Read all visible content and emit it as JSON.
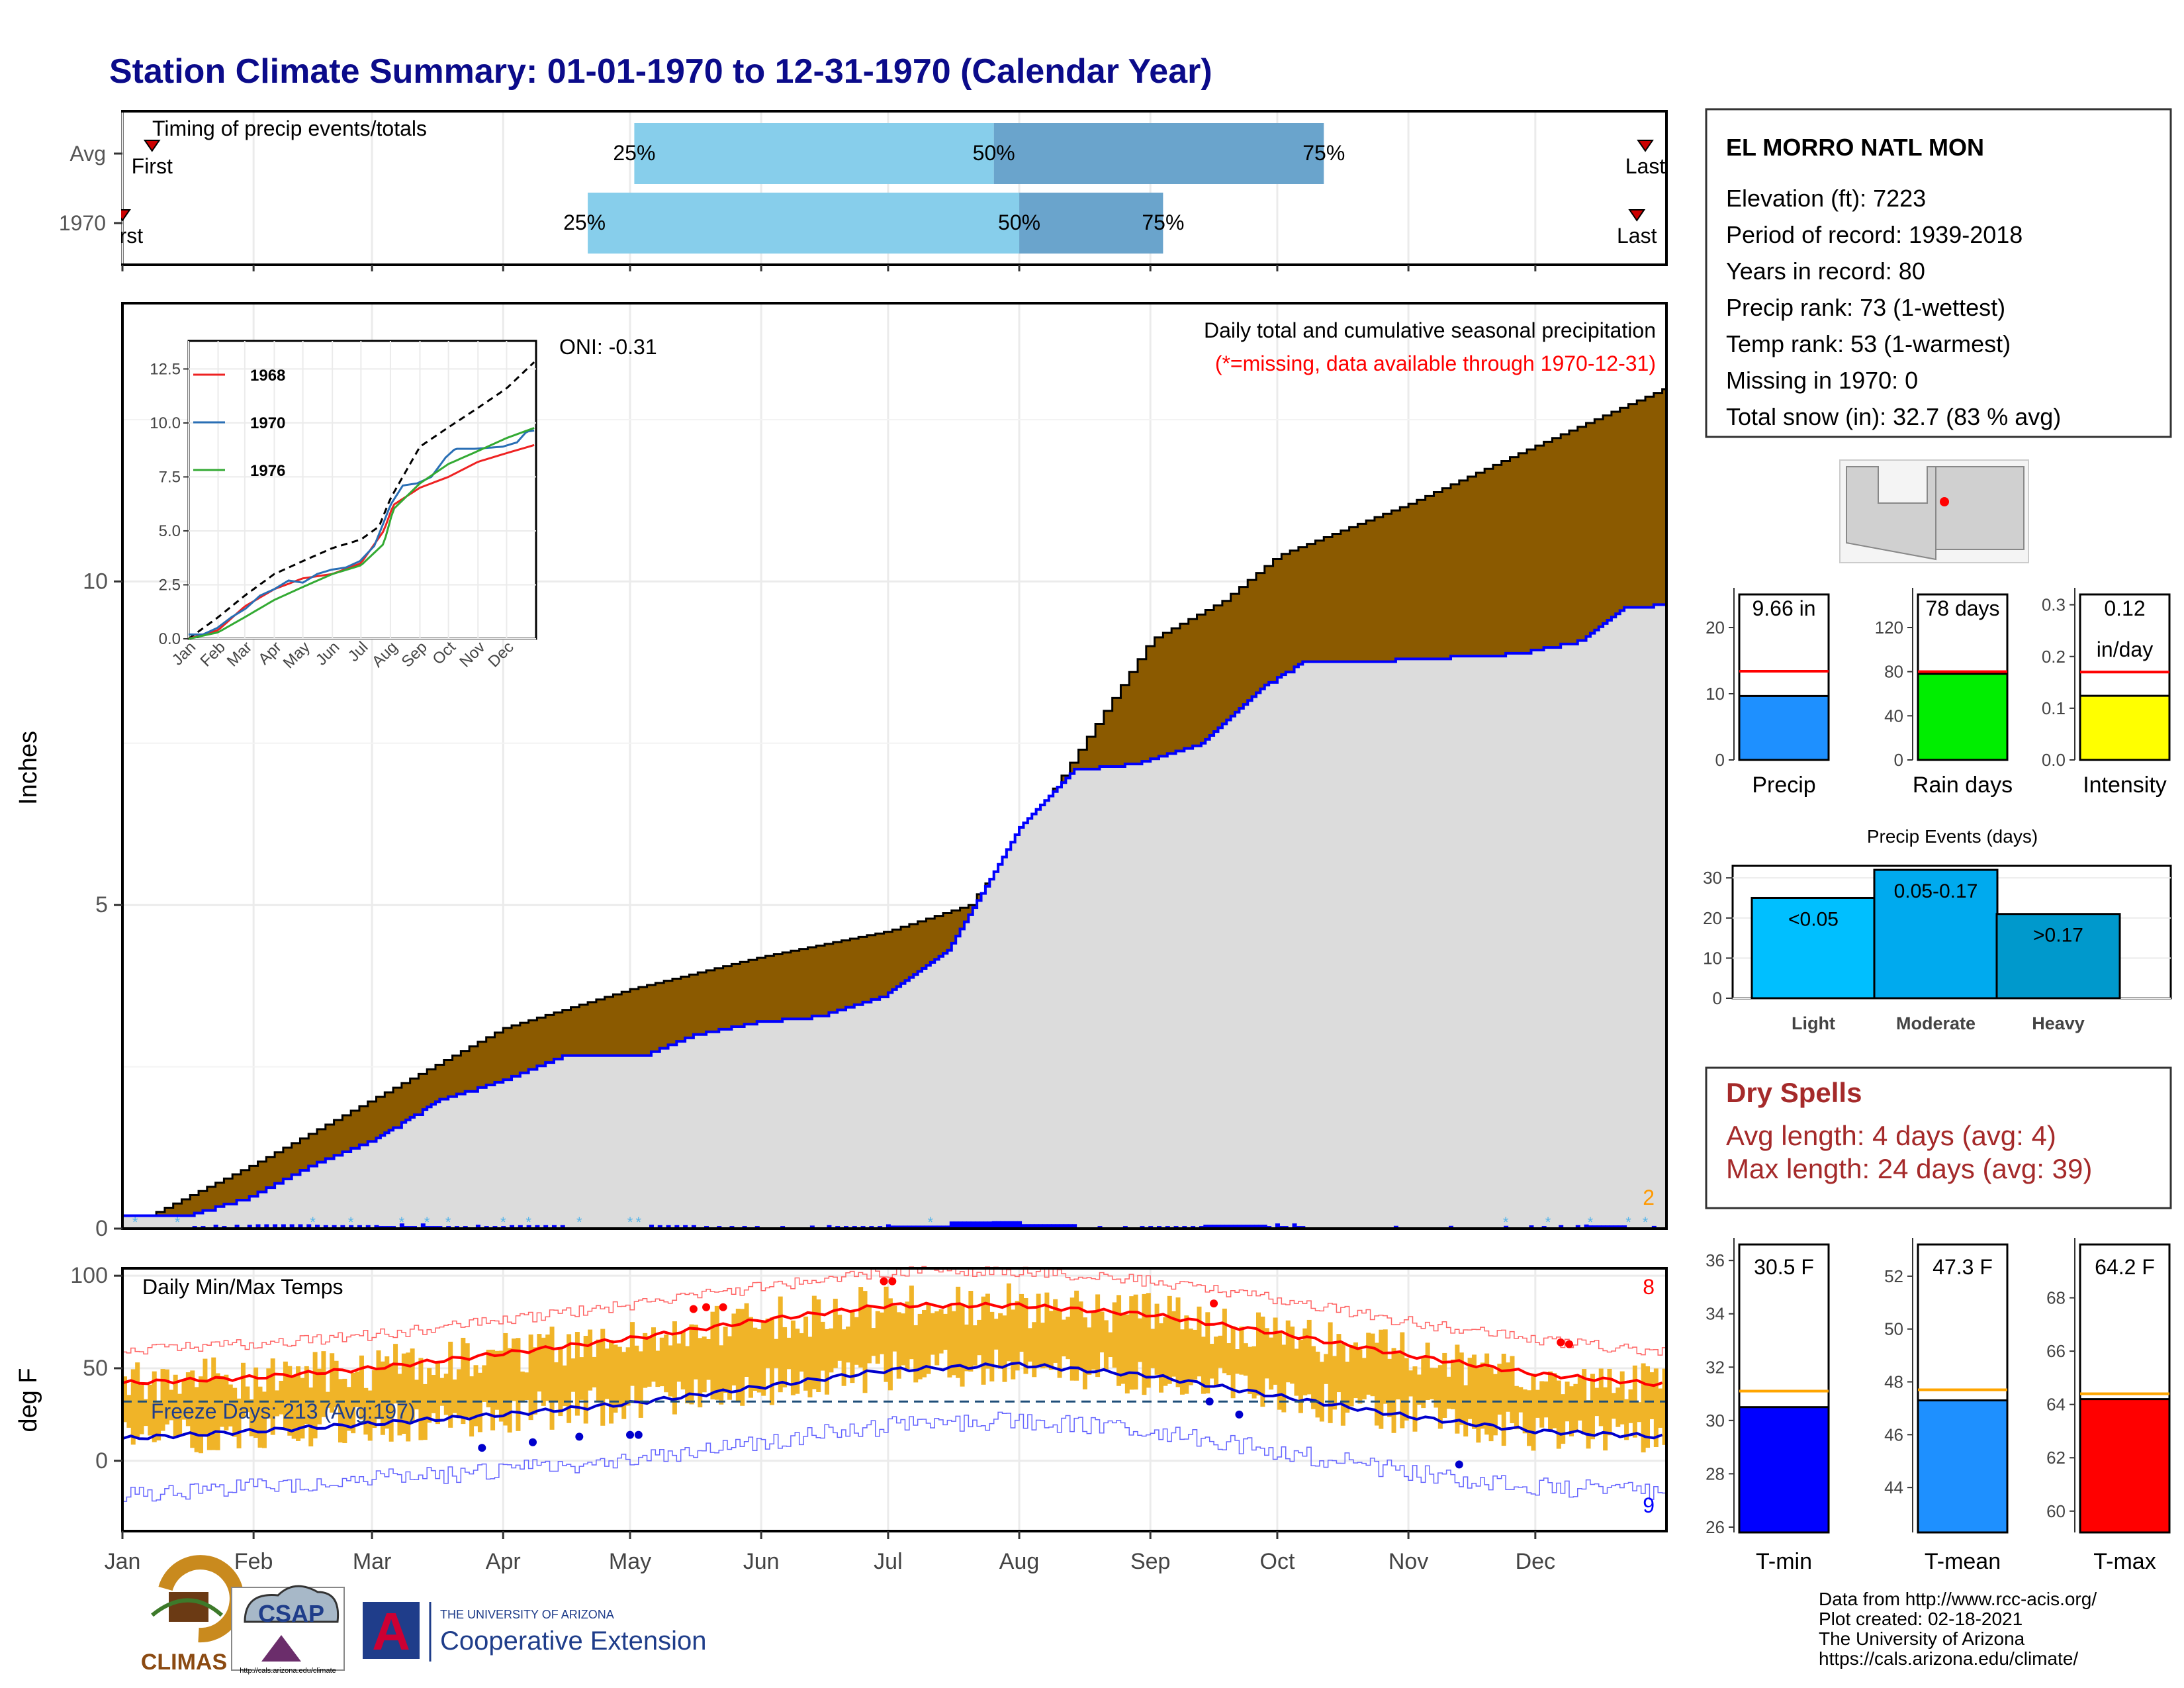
{
  "page": {
    "title": "Station Climate Summary: 01-01-1970 to 12-31-1970 (Calendar Year)"
  },
  "colors": {
    "title": "#0b0b8a",
    "normal_fill": "#8b5a00",
    "year_fill": "#dcdcdc",
    "year_line": "#0000ff",
    "bar_light_blue": "#87ceeb",
    "bar_mid_blue": "#6aa4cc",
    "temp_bar": "#f0b428",
    "max_line": "#ff0000",
    "min_line": "#0000cc",
    "dry_spell": "#a52a2a",
    "missing": "#ff0000"
  },
  "timing_panel": {
    "label": "Timing of precip events/totals",
    "rows": [
      {
        "name": "Avg",
        "first_label": "First",
        "last_label": "Last",
        "p25": "25%",
        "p50": "50%",
        "p75": "75%",
        "first_day": 7,
        "p25_day": 121,
        "p50_day": 206,
        "p75_day": 284,
        "last_day": 360
      },
      {
        "name": "1970",
        "first_label": "First",
        "last_label": "Last",
        "p25": "25%",
        "p50": "50%",
        "p75": "75%",
        "first_day": 0,
        "p25_day": 110,
        "p50_day": 212,
        "p75_day": 246,
        "last_day": 358
      }
    ]
  },
  "precip_panel": {
    "subtitle": "Daily total and cumulative seasonal precipitation",
    "missing_note": "(*=missing, data available through 1970-12-31)",
    "oni": "ONI: -0.31",
    "ylabel": "Inches",
    "y_ticks": [
      "0",
      "5",
      "10"
    ],
    "corner_count": "2"
  },
  "temp_panel": {
    "label": "Daily Min/Max Temps",
    "ylabel": "deg F",
    "y_ticks": [
      "0",
      "50",
      "100"
    ],
    "freeze_days": "Freeze Days: 213 (Avg:197)",
    "record_high_count": "8",
    "record_low_count": "9"
  },
  "months": [
    "Jan",
    "Feb",
    "Mar",
    "Apr",
    "May",
    "Jun",
    "Jul",
    "Aug",
    "Sep",
    "Oct",
    "Nov",
    "Dec"
  ],
  "station": {
    "name": "EL MORRO NATL MON",
    "lines": [
      "Elevation (ft): 7223",
      "Period of record: 1939-2018",
      "Years in record: 80",
      "Precip rank: 73 (1-wettest)",
      "Temp rank: 53 (1-warmest)",
      "Missing in 1970: 0",
      "Total snow (in): 32.7 (83 % avg)"
    ]
  },
  "inset": {
    "legend": [
      "1968",
      "1970",
      "1976"
    ],
    "y_ticks": [
      "0.0",
      "2.5",
      "5.0",
      "7.5",
      "10.0",
      "12.5"
    ],
    "x_ticks": [
      "Jan",
      "Feb",
      "Mar",
      "Apr",
      "May",
      "Jun",
      "Jul",
      "Aug",
      "Sep",
      "Oct",
      "Nov",
      "Dec"
    ]
  },
  "mini_bars": [
    {
      "label": "Precip",
      "value_text": "9.66 in",
      "value": 9.66,
      "avg": 13.4,
      "ymax": 25,
      "ticks": [
        "0",
        "10",
        "20"
      ],
      "color": "#1e90ff"
    },
    {
      "label": "Rain days",
      "value_text": "78 days",
      "value": 78,
      "avg": 80,
      "ymax": 150,
      "ticks": [
        "0",
        "40",
        "80",
        "120"
      ],
      "color": "#00ee00"
    },
    {
      "label": "Intensity",
      "value_text": "0.12",
      "value_text2": "in/day",
      "value": 0.124,
      "avg": 0.17,
      "ymax": 0.32,
      "ticks": [
        "0.0",
        "0.1",
        "0.2",
        "0.3"
      ],
      "color": "#ffff00"
    }
  ],
  "precip_events": {
    "title": "Precip Events (days)",
    "y_ticks": [
      "0",
      "10",
      "20",
      "30"
    ],
    "categories": [
      "Light",
      "Moderate",
      "Heavy"
    ],
    "bar_labels": [
      "<0.05",
      "0.05-0.17",
      ">0.17"
    ],
    "values": [
      25,
      32,
      21
    ]
  },
  "dry_spells": {
    "title": "Dry Spells",
    "avg_line": "Avg length: 4 days (avg: 4)",
    "max_line": "Max length: 24 days (avg: 39)"
  },
  "temp_bars": [
    {
      "label": "T-min",
      "value_text": "30.5 F",
      "value": 30.5,
      "avg": 31.1,
      "ymin": 25.8,
      "ymax": 36.6,
      "ticks": [
        "26",
        "28",
        "30",
        "32",
        "34",
        "36"
      ],
      "color": "#0000ff"
    },
    {
      "label": "T-mean",
      "value_text": "47.3 F",
      "value": 47.3,
      "avg": 47.7,
      "ymin": 42.3,
      "ymax": 53.2,
      "ticks": [
        "44",
        "46",
        "48",
        "50",
        "52"
      ],
      "color": "#1e90ff"
    },
    {
      "label": "T-max",
      "value_text": "64.2 F",
      "value": 64.2,
      "avg": 64.4,
      "ymin": 59.2,
      "ymax": 70.0,
      "ticks": [
        "60",
        "62",
        "64",
        "66",
        "68"
      ],
      "color": "#ff0000"
    }
  ],
  "footer": {
    "lines": [
      "Data from http://www.rcc-acis.org/",
      "Plot created: 02-18-2021",
      "The University of Arizona",
      "https://cals.arizona.edu/climate/"
    ],
    "logo_climas": "CLIMAS",
    "logo_csap": "CSAP",
    "logo_csap_url": "http://cals.arizona.edu/climate",
    "ua_line1": "THE UNIVERSITY OF ARIZONA",
    "ua_line2": "Cooperative Extension",
    "ua_letter": "A"
  },
  "chart_data": [
    {
      "type": "area",
      "title": "Daily total and cumulative seasonal precipitation",
      "ylabel": "Inches",
      "ylim": [
        0,
        14.3
      ],
      "xlim_days": [
        0,
        365
      ],
      "series": [
        {
          "name": "normal cumulative",
          "x": [
            0,
            31,
            59,
            90,
            110,
            120,
            151,
            181,
            200,
            212,
            243,
            260,
            273,
            304,
            334,
            365
          ],
          "values": [
            0,
            1.0,
            2.0,
            3.1,
            3.5,
            3.7,
            4.2,
            4.6,
            5.0,
            6.0,
            9.1,
            9.7,
            10.4,
            11.2,
            12.1,
            13.0
          ]
        },
        {
          "name": "1970 cumulative",
          "x": [
            0,
            15,
            30,
            45,
            60,
            75,
            90,
            105,
            120,
            135,
            150,
            165,
            180,
            195,
            205,
            212,
            225,
            240,
            255,
            270,
            280,
            300,
            330,
            345,
            355,
            365
          ],
          "values": [
            0.2,
            0.2,
            0.5,
            1.0,
            1.4,
            2.0,
            2.3,
            2.7,
            2.6,
            3.0,
            3.2,
            3.3,
            3.6,
            4.3,
            5.4,
            6.2,
            7.1,
            7.2,
            7.5,
            8.4,
            8.8,
            8.8,
            8.9,
            9.1,
            9.6,
            9.66
          ]
        }
      ]
    },
    {
      "type": "line",
      "title": "Daily Min/Max Temps",
      "ylabel": "deg F",
      "ylim": [
        -38,
        104
      ],
      "series": [
        {
          "name": "avg max",
          "x": [
            0,
            31,
            59,
            90,
            120,
            151,
            181,
            212,
            243,
            273,
            304,
            334,
            365
          ],
          "values": [
            42,
            45,
            50,
            58,
            66,
            76,
            84,
            84,
            79,
            69,
            57,
            47,
            41
          ]
        },
        {
          "name": "avg min",
          "x": [
            0,
            31,
            59,
            90,
            120,
            151,
            181,
            212,
            243,
            273,
            304,
            334,
            365
          ],
          "values": [
            12,
            16,
            20,
            25,
            31,
            40,
            49,
            52,
            46,
            35,
            24,
            16,
            13
          ]
        }
      ],
      "freeze_threshold": 32
    }
  ]
}
